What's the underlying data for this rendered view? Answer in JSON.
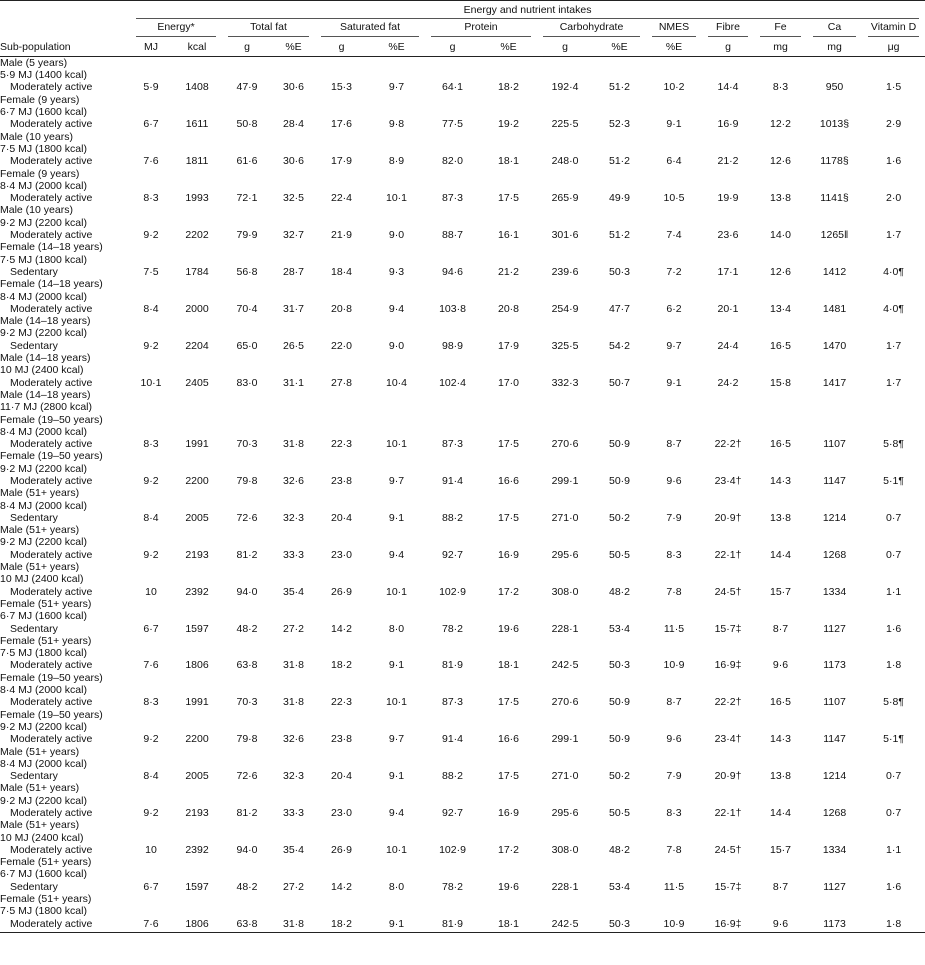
{
  "header": {
    "title": "Energy and nutrient intakes",
    "stub": "Sub-population",
    "groups": [
      {
        "text": "Energy*",
        "span": 2
      },
      {
        "text": "Total fat",
        "span": 2
      },
      {
        "text": "Saturated fat",
        "span": 2
      },
      {
        "text": "Protein",
        "span": 2
      },
      {
        "text": "Carbohydrate",
        "span": 2
      },
      {
        "text": "NMES",
        "span": 1
      },
      {
        "text": "Fibre",
        "span": 1
      },
      {
        "text": "Fe",
        "span": 1
      },
      {
        "text": "Ca",
        "span": 1
      },
      {
        "text": "Vitamin D",
        "span": 1
      }
    ],
    "units": [
      "MJ",
      "kcal",
      "g",
      "%E",
      "g",
      "%E",
      "g",
      "%E",
      "g",
      "%E",
      "%E",
      "g",
      "mg",
      "mg",
      "μg"
    ]
  },
  "table": {
    "rows": [
      {
        "label": [
          "Male (5 years)",
          "5·9 MJ (1400 kcal)",
          "Moderately active"
        ],
        "values": [
          "5·9",
          "1408",
          "47·9",
          "30·6",
          "15·3",
          "9·7",
          "64·1",
          "18·2",
          "192·4",
          "51·2",
          "10·2",
          "14·4",
          "8·3",
          "950",
          "1·5"
        ]
      },
      {
        "label": [
          "Female (9 years)",
          "6·7 MJ (1600 kcal)",
          "Moderately active"
        ],
        "values": [
          "6·7",
          "1611",
          "50·8",
          "28·4",
          "17·6",
          "9·8",
          "77·5",
          "19·2",
          "225·5",
          "52·3",
          "9·1",
          "16·9",
          "12·2",
          "1013§",
          "2·9"
        ]
      },
      {
        "label": [
          "Male (10 years)",
          "7·5 MJ (1800 kcal)",
          "Moderately active"
        ],
        "values": [
          "7·6",
          "1811",
          "61·6",
          "30·6",
          "17·9",
          "8·9",
          "82·0",
          "18·1",
          "248·0",
          "51·2",
          "6·4",
          "21·2",
          "12·6",
          "1178§",
          "1·6"
        ]
      },
      {
        "label": [
          "Female (9 years)",
          "8·4 MJ (2000 kcal)",
          "Moderately active"
        ],
        "values": [
          "8·3",
          "1993",
          "72·1",
          "32·5",
          "22·4",
          "10·1",
          "87·3",
          "17·5",
          "265·9",
          "49·9",
          "10·5",
          "19·9",
          "13·8",
          "1141§",
          "2·0"
        ]
      },
      {
        "label": [
          "Male (10 years)",
          "9·2 MJ (2200 kcal)",
          "Moderately active"
        ],
        "values": [
          "9·2",
          "2202",
          "79·9",
          "32·7",
          "21·9",
          "9·0",
          "88·7",
          "16·1",
          "301·6",
          "51·2",
          "7·4",
          "23·6",
          "14·0",
          "1265‖",
          "1·7"
        ]
      },
      {
        "label": [
          "Female (14–18 years)",
          "7·5 MJ (1800 kcal)",
          "Sedentary"
        ],
        "values": [
          "7·5",
          "1784",
          "56·8",
          "28·7",
          "18·4",
          "9·3",
          "94·6",
          "21·2",
          "239·6",
          "50·3",
          "7·2",
          "17·1",
          "12·6",
          "1412",
          "4·0¶"
        ]
      },
      {
        "label": [
          "Female (14–18 years)",
          "8·4 MJ (2000 kcal)",
          "Moderately active"
        ],
        "values": [
          "8·4",
          "2000",
          "70·4",
          "31·7",
          "20·8",
          "9·4",
          "103·8",
          "20·8",
          "254·9",
          "47·7",
          "6·2",
          "20·1",
          "13·4",
          "1481",
          "4·0¶"
        ]
      },
      {
        "label": [
          "Male (14–18 years)",
          "9·2 MJ (2200 kcal)",
          "Sedentary"
        ],
        "values": [
          "9·2",
          "2204",
          "65·0",
          "26·5",
          "22·0",
          "9·0",
          "98·9",
          "17·9",
          "325·5",
          "54·2",
          "9·7",
          "24·4",
          "16·5",
          "1470",
          "1·7"
        ]
      },
      {
        "label": [
          "Male (14–18 years)",
          "10 MJ (2400 kcal)",
          "Moderately active"
        ],
        "values": [
          "10·1",
          "2405",
          "83·0",
          "31·1",
          "27·8",
          "10·4",
          "102·4",
          "17·0",
          "332·3",
          "50·7",
          "9·1",
          "24·2",
          "15·8",
          "1417",
          "1·7"
        ]
      },
      {
        "label": [
          "Male (14–18 years)",
          "11·7 MJ (2800 kcal)",
          "Female (19–50 years)",
          "8·4 MJ (2000 kcal)",
          "Moderately active"
        ],
        "values": [
          "8·3",
          "1991",
          "70·3",
          "31·8",
          "22·3",
          "10·1",
          "87·3",
          "17·5",
          "270·6",
          "50·9",
          "8·7",
          "22·2†",
          "16·5",
          "1107",
          "5·8¶"
        ]
      },
      {
        "label": [
          "Female (19–50 years)",
          "9·2 MJ (2200 kcal)",
          "Moderately active"
        ],
        "values": [
          "9·2",
          "2200",
          "79·8",
          "32·6",
          "23·8",
          "9·7",
          "91·4",
          "16·6",
          "299·1",
          "50·9",
          "9·6",
          "23·4†",
          "14·3",
          "1147",
          "5·1¶"
        ]
      },
      {
        "label": [
          "Male (51+ years)",
          "8·4 MJ (2000 kcal)",
          "Sedentary"
        ],
        "values": [
          "8·4",
          "2005",
          "72·6",
          "32·3",
          "20·4",
          "9·1",
          "88·2",
          "17·5",
          "271·0",
          "50·2",
          "7·9",
          "20·9†",
          "13·8",
          "1214",
          "0·7"
        ]
      },
      {
        "label": [
          "Male (51+ years)",
          "9·2 MJ (2200 kcal)",
          "Moderately active"
        ],
        "values": [
          "9·2",
          "2193",
          "81·2",
          "33·3",
          "23·0",
          "9·4",
          "92·7",
          "16·9",
          "295·6",
          "50·5",
          "8·3",
          "22·1†",
          "14·4",
          "1268",
          "0·7"
        ]
      },
      {
        "label": [
          "Male (51+ years)",
          "10 MJ (2400 kcal)",
          "Moderately active"
        ],
        "values": [
          "10",
          "2392",
          "94·0",
          "35·4",
          "26·9",
          "10·1",
          "102·9",
          "17·2",
          "308·0",
          "48·2",
          "7·8",
          "24·5†",
          "15·7",
          "1334",
          "1·1"
        ]
      },
      {
        "label": [
          "Female (51+ years)",
          "6·7 MJ (1600 kcal)",
          "Sedentary"
        ],
        "values": [
          "6·7",
          "1597",
          "48·2",
          "27·2",
          "14·2",
          "8·0",
          "78·2",
          "19·6",
          "228·1",
          "53·4",
          "11·5",
          "15·7‡",
          "8·7",
          "1127",
          "1·6"
        ]
      },
      {
        "label": [
          "Female (51+ years)",
          "7·5 MJ (1800 kcal)",
          "Moderately active"
        ],
        "values": [
          "7·6",
          "1806",
          "63·8",
          "31·8",
          "18·2",
          "9·1",
          "81·9",
          "18·1",
          "242·5",
          "50·3",
          "10·9",
          "16·9‡",
          "9·6",
          "1173",
          "1·8"
        ]
      },
      {
        "label": [
          "Female (19–50 years)",
          "8·4 MJ (2000 kcal)",
          "Moderately active"
        ],
        "values": [
          "8·3",
          "1991",
          "70·3",
          "31·8",
          "22·3",
          "10·1",
          "87·3",
          "17·5",
          "270·6",
          "50·9",
          "8·7",
          "22·2†",
          "16·5",
          "1107",
          "5·8¶"
        ]
      },
      {
        "label": [
          "Female (19–50 years)",
          "9·2 MJ (2200 kcal)",
          "Moderately active"
        ],
        "values": [
          "9·2",
          "2200",
          "79·8",
          "32·6",
          "23·8",
          "9·7",
          "91·4",
          "16·6",
          "299·1",
          "50·9",
          "9·6",
          "23·4†",
          "14·3",
          "1147",
          "5·1¶"
        ]
      },
      {
        "label": [
          "Male (51+ years)",
          "8·4 MJ (2000 kcal)",
          "Sedentary"
        ],
        "values": [
          "8·4",
          "2005",
          "72·6",
          "32·3",
          "20·4",
          "9·1",
          "88·2",
          "17·5",
          "271·0",
          "50·2",
          "7·9",
          "20·9†",
          "13·8",
          "1214",
          "0·7"
        ]
      },
      {
        "label": [
          "Male (51+ years)",
          "9·2 MJ (2200 kcal)",
          "Moderately active"
        ],
        "values": [
          "9·2",
          "2193",
          "81·2",
          "33·3",
          "23·0",
          "9·4",
          "92·7",
          "16·9",
          "295·6",
          "50·5",
          "8·3",
          "22·1†",
          "14·4",
          "1268",
          "0·7"
        ]
      },
      {
        "label": [
          "Male (51+ years)",
          "10 MJ (2400 kcal)",
          "Moderately active"
        ],
        "values": [
          "10",
          "2392",
          "94·0",
          "35·4",
          "26·9",
          "10·1",
          "102·9",
          "17·2",
          "308·0",
          "48·2",
          "7·8",
          "24·5†",
          "15·7",
          "1334",
          "1·1"
        ]
      },
      {
        "label": [
          "Female (51+ years)",
          "6·7 MJ (1600 kcal)",
          "Sedentary"
        ],
        "values": [
          "6·7",
          "1597",
          "48·2",
          "27·2",
          "14·2",
          "8·0",
          "78·2",
          "19·6",
          "228·1",
          "53·4",
          "11·5",
          "15·7‡",
          "8·7",
          "1127",
          "1·6"
        ]
      },
      {
        "label": [
          "Female (51+ years)",
          "7·5 MJ (1800 kcal)",
          "Moderately active"
        ],
        "values": [
          "7·6",
          "1806",
          "63·8",
          "31·8",
          "18·2",
          "9·1",
          "81·9",
          "18·1",
          "242·5",
          "50·3",
          "10·9",
          "16·9‡",
          "9·6",
          "1173",
          "1·8"
        ]
      }
    ]
  }
}
